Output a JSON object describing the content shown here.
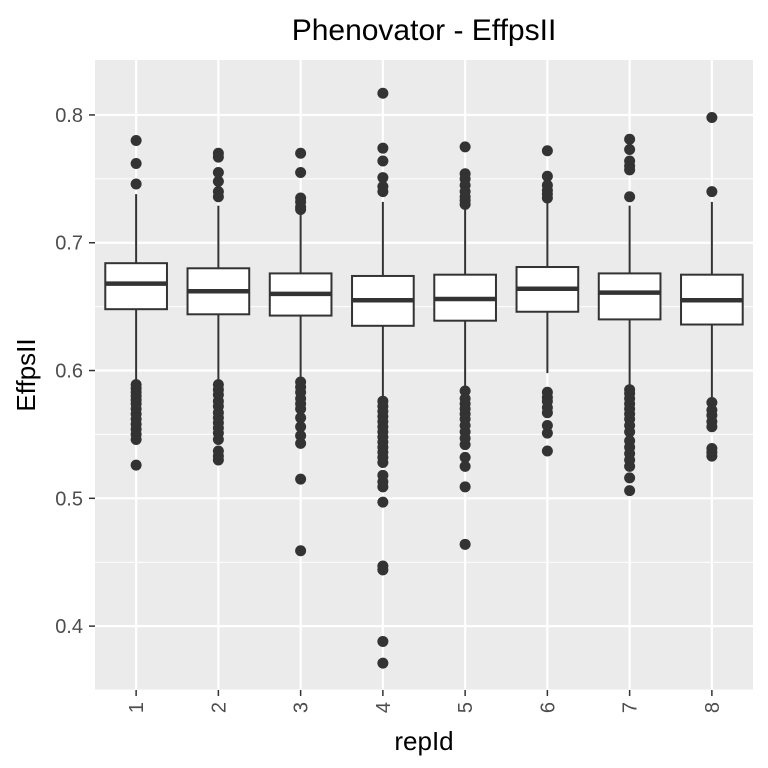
{
  "chart_data": {
    "type": "box",
    "title": "Phenovator - EffpsII",
    "xlabel": "repId",
    "ylabel": "EffpsII",
    "categories": [
      "1",
      "2",
      "3",
      "4",
      "5",
      "6",
      "7",
      "8"
    ],
    "ylim": [
      0.35,
      0.843
    ],
    "yticks": [
      0.4,
      0.5,
      0.6,
      0.7,
      0.8
    ],
    "ytick_labels": [
      "0.4",
      "0.5",
      "0.6",
      "0.7",
      "0.8"
    ],
    "grid": true,
    "colors": {
      "panel": "#ebebeb",
      "grid": "#ffffff",
      "box_fill": "#ffffff",
      "box_line": "#333333",
      "outlier": "#333333"
    },
    "boxes": [
      {
        "category": "1",
        "q1": 0.648,
        "median": 0.668,
        "q3": 0.684,
        "whisker_low": 0.592,
        "whisker_high": 0.738,
        "outliers": [
          0.78,
          0.762,
          0.746,
          0.589,
          0.586,
          0.583,
          0.58,
          0.577,
          0.574,
          0.57,
          0.566,
          0.562,
          0.558,
          0.554,
          0.55,
          0.546,
          0.526
        ]
      },
      {
        "category": "2",
        "q1": 0.644,
        "median": 0.662,
        "q3": 0.68,
        "whisker_low": 0.591,
        "whisker_high": 0.729,
        "outliers": [
          0.77,
          0.767,
          0.755,
          0.748,
          0.74,
          0.736,
          0.589,
          0.585,
          0.581,
          0.576,
          0.572,
          0.567,
          0.563,
          0.559,
          0.555,
          0.551,
          0.546,
          0.537,
          0.533,
          0.53
        ]
      },
      {
        "category": "3",
        "q1": 0.643,
        "median": 0.66,
        "q3": 0.676,
        "whisker_low": 0.594,
        "whisker_high": 0.724,
        "outliers": [
          0.77,
          0.755,
          0.735,
          0.732,
          0.728,
          0.726,
          0.591,
          0.587,
          0.583,
          0.578,
          0.574,
          0.57,
          0.563,
          0.556,
          0.549,
          0.543,
          0.515,
          0.459
        ]
      },
      {
        "category": "4",
        "q1": 0.635,
        "median": 0.655,
        "q3": 0.674,
        "whisker_low": 0.578,
        "whisker_high": 0.732,
        "outliers": [
          0.817,
          0.774,
          0.764,
          0.751,
          0.744,
          0.74,
          0.576,
          0.572,
          0.568,
          0.564,
          0.56,
          0.556,
          0.552,
          0.548,
          0.544,
          0.54,
          0.536,
          0.532,
          0.528,
          0.518,
          0.513,
          0.509,
          0.497,
          0.447,
          0.444,
          0.388,
          0.371
        ]
      },
      {
        "category": "5",
        "q1": 0.639,
        "median": 0.656,
        "q3": 0.675,
        "whisker_low": 0.587,
        "whisker_high": 0.727,
        "outliers": [
          0.775,
          0.754,
          0.75,
          0.745,
          0.74,
          0.736,
          0.733,
          0.73,
          0.584,
          0.578,
          0.574,
          0.57,
          0.566,
          0.562,
          0.557,
          0.552,
          0.547,
          0.542,
          0.532,
          0.525,
          0.509,
          0.464
        ]
      },
      {
        "category": "6",
        "q1": 0.646,
        "median": 0.664,
        "q3": 0.681,
        "whisker_low": 0.598,
        "whisker_high": 0.731,
        "outliers": [
          0.772,
          0.752,
          0.745,
          0.741,
          0.738,
          0.735,
          0.583,
          0.579,
          0.576,
          0.571,
          0.567,
          0.557,
          0.551,
          0.537
        ]
      },
      {
        "category": "7",
        "q1": 0.64,
        "median": 0.661,
        "q3": 0.676,
        "whisker_low": 0.588,
        "whisker_high": 0.729,
        "outliers": [
          0.781,
          0.773,
          0.764,
          0.76,
          0.757,
          0.736,
          0.585,
          0.582,
          0.578,
          0.574,
          0.57,
          0.566,
          0.562,
          0.557,
          0.552,
          0.545,
          0.54,
          0.535,
          0.53,
          0.525,
          0.516,
          0.506
        ]
      },
      {
        "category": "8",
        "q1": 0.636,
        "median": 0.655,
        "q3": 0.675,
        "whisker_low": 0.579,
        "whisker_high": 0.732,
        "outliers": [
          0.798,
          0.74,
          0.575,
          0.569,
          0.565,
          0.56,
          0.556,
          0.539,
          0.536,
          0.533
        ]
      }
    ]
  }
}
